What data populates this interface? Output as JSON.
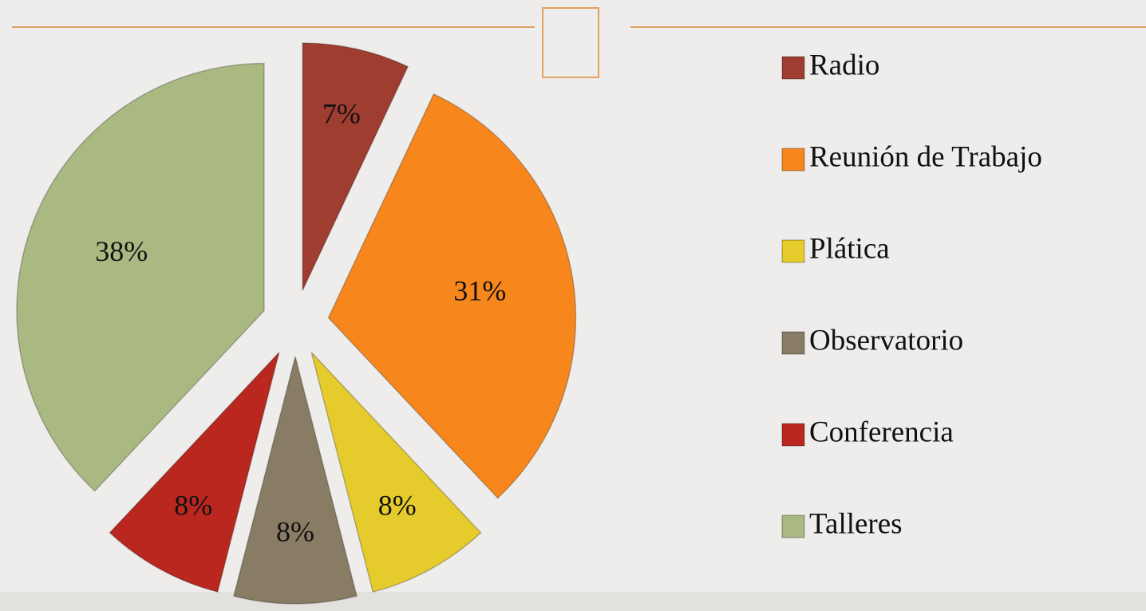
{
  "chart_data": {
    "type": "pie",
    "categories": [
      "Radio",
      "Reunión de Trabajo",
      "Plática",
      "Observatorio",
      "Conferencia",
      "Talleres"
    ],
    "values": [
      7,
      31,
      8,
      8,
      8,
      38
    ],
    "value_labels": [
      "7%",
      "31%",
      "8%",
      "8%",
      "8%",
      "38%"
    ],
    "colors": [
      "#a03d31",
      "#f7871d",
      "#e6cb2c",
      "#887c64",
      "#ba271f",
      "#aab982"
    ],
    "legend": "right"
  }
}
